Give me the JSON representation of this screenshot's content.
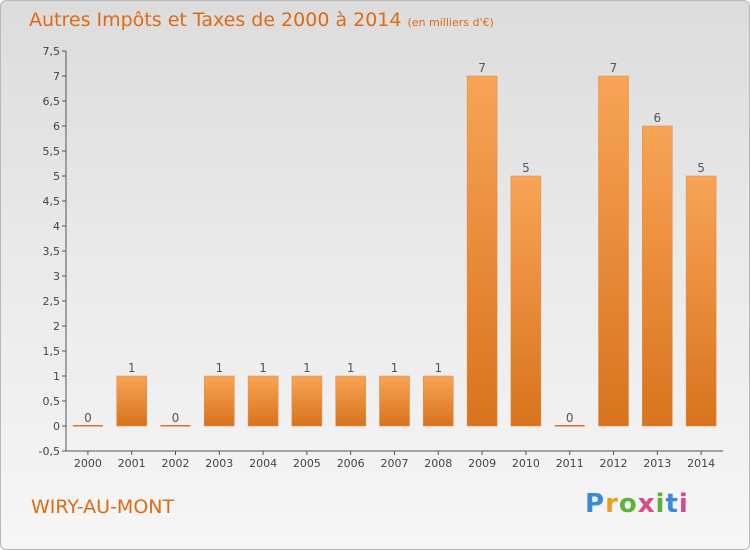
{
  "header": {
    "title": "Autres Impôts et Taxes de 2000 à 2014",
    "subtitle": "(en milliers d'€)"
  },
  "footer": {
    "commune": "WIRY-AU-MONT",
    "brand": "Proxiti"
  },
  "colors": {
    "bar_top": "#f7a456",
    "bar_bottom": "#d9731d",
    "title": "#e06a14"
  },
  "chart_data": {
    "type": "bar",
    "title": "Autres Impôts et Taxes de 2000 à 2014",
    "subtitle": "(en milliers d'€)",
    "categories": [
      "2000",
      "2001",
      "2002",
      "2003",
      "2004",
      "2005",
      "2006",
      "2007",
      "2008",
      "2009",
      "2010",
      "2011",
      "2012",
      "2013",
      "2014"
    ],
    "values": [
      0,
      1,
      0,
      1,
      1,
      1,
      1,
      1,
      1,
      7,
      5,
      0,
      7,
      6,
      5
    ],
    "data_labels": [
      "0",
      "1",
      "0",
      "1",
      "1",
      "1",
      "1",
      "1",
      "1",
      "7",
      "5",
      "0",
      "7",
      "6",
      "5"
    ],
    "yticks": [
      "-0,5",
      "0",
      "0,5",
      "1",
      "1,5",
      "2",
      "2,5",
      "3",
      "3,5",
      "4",
      "4,5",
      "5",
      "5,5",
      "6",
      "6,5",
      "7",
      "7,5"
    ],
    "ylim": [
      -0.5,
      7.5
    ],
    "grid": false,
    "xlabel": "",
    "ylabel": ""
  }
}
